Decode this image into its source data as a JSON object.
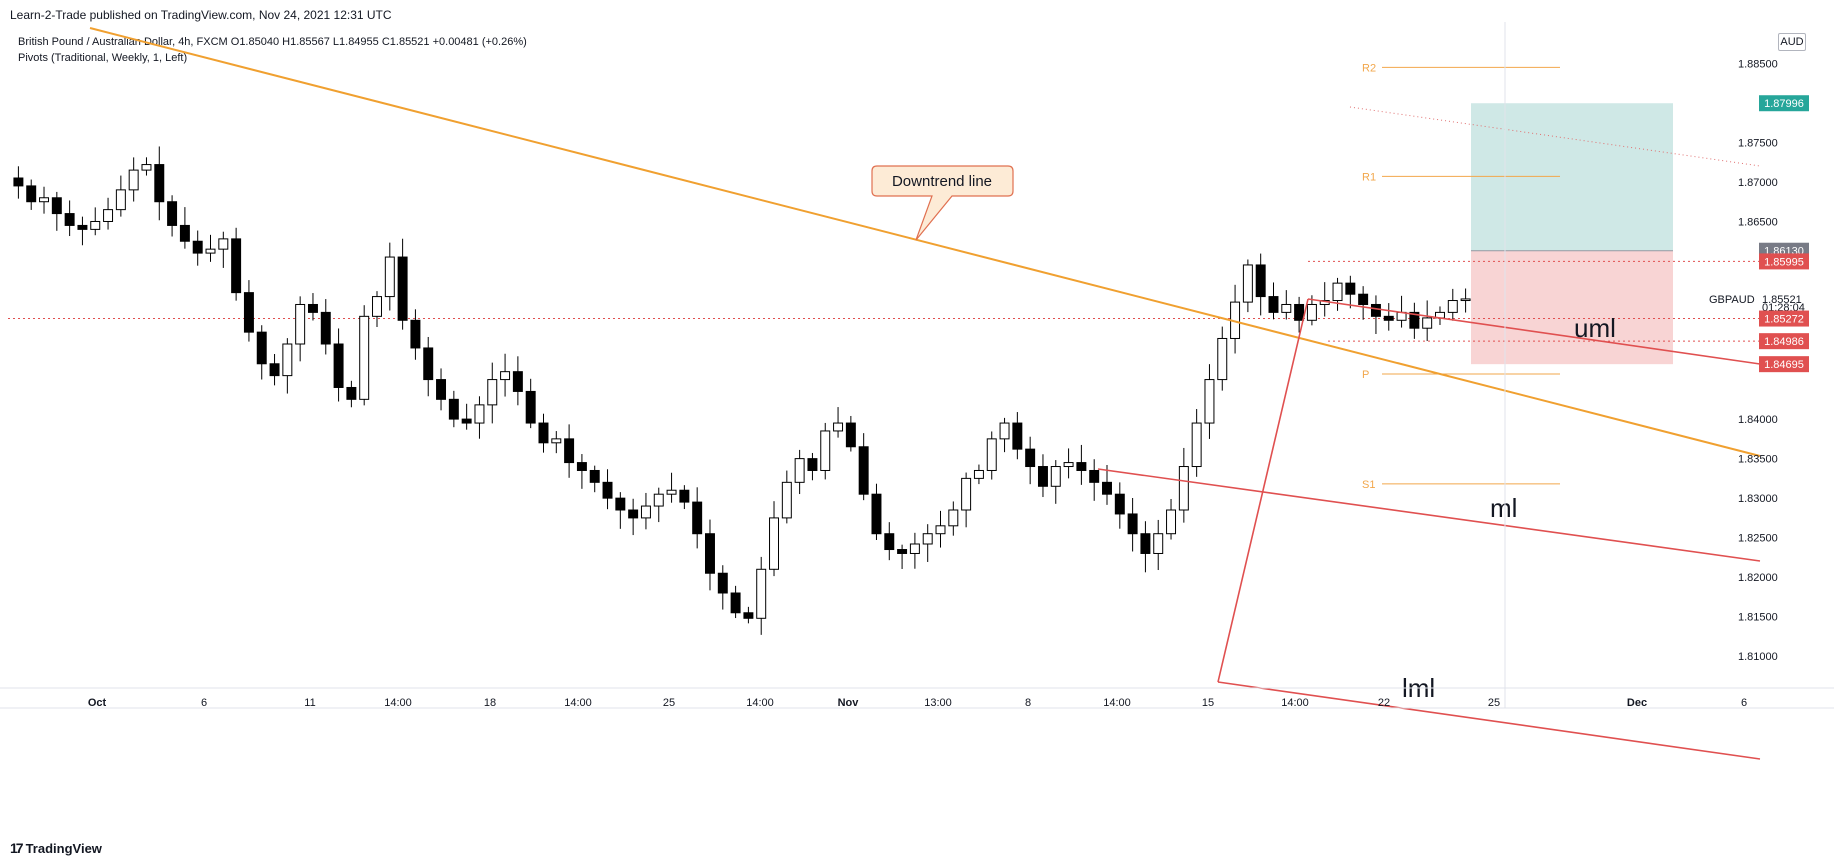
{
  "header": {
    "published": "Learn-2-Trade published on TradingView.com, Nov 24, 2021 12:31 UTC"
  },
  "legend": {
    "line1": "British Pound / Australian Dollar, 4h, FXCM  O1.85040  H1.85567  L1.84955  C1.85521  +0.00481 (+0.26%)",
    "line2": "Pivots (Traditional, Weekly, 1, Left)"
  },
  "currency": "AUD",
  "footer": {
    "brand": "TradingView",
    "brand_mark": "17"
  },
  "colors": {
    "up": "#ffffff",
    "down": "#000000",
    "wick": "#000000",
    "trendline": "#f0a030",
    "fork": "#e05050",
    "pivot": "#f2a74b",
    "target_zone": "#cfe8e6",
    "stop_zone": "#f8d4d4",
    "current_line": "#e05050"
  },
  "chart_data": {
    "type": "candlestick",
    "symbol": "GBPAUD",
    "interval": "4h",
    "title": "British Pound / Australian Dollar, 4h, FXCM",
    "ylim": [
      1.8075,
      1.8872
    ],
    "yticks": [
      1.885,
      1.875,
      1.87,
      1.865,
      1.84,
      1.835,
      1.83,
      1.825,
      1.82,
      1.815,
      1.81
    ],
    "ytick_labels": [
      "1.88500",
      "1.87500",
      "1.87000",
      "1.86500",
      "1.84000",
      "1.83500",
      "1.83000",
      "1.82500",
      "1.82000",
      "1.81500",
      "1.81000"
    ],
    "xticks": [
      "Oct",
      "6",
      "11",
      "14:00",
      "18",
      "14:00",
      "25",
      "14:00",
      "Nov",
      "13:00",
      "8",
      "14:00",
      "15",
      "14:00",
      "22",
      "25",
      "Dec",
      "6"
    ],
    "x_bold": [
      "Oct",
      "Nov",
      "Dec"
    ],
    "close_path": [
      1.8695,
      1.8675,
      1.868,
      1.866,
      1.8645,
      1.864,
      1.865,
      1.8665,
      1.869,
      1.8715,
      1.8722,
      1.8675,
      1.8645,
      1.8625,
      1.861,
      1.8615,
      1.8628,
      1.856,
      1.851,
      1.847,
      1.8455,
      1.8495,
      1.8545,
      1.8535,
      1.8495,
      1.844,
      1.8425,
      1.853,
      1.8555,
      1.8605,
      1.8525,
      1.849,
      1.845,
      1.8425,
      1.84,
      1.8395,
      1.8418,
      1.845,
      1.846,
      1.8435,
      1.8395,
      1.837,
      1.8375,
      1.8345,
      1.8335,
      1.832,
      1.83,
      1.8285,
      1.8275,
      1.829,
      1.8305,
      1.831,
      1.8295,
      1.8255,
      1.8205,
      1.818,
      1.8155,
      1.8148,
      1.821,
      1.8275,
      1.832,
      1.835,
      1.8335,
      1.8385,
      1.8395,
      1.8365,
      1.8305,
      1.8255,
      1.8235,
      1.823,
      1.8242,
      1.8255,
      1.8265,
      1.8285,
      1.8325,
      1.8335,
      1.8375,
      1.8395,
      1.8362,
      1.834,
      1.8315,
      1.834,
      1.8345,
      1.8335,
      1.832,
      1.8305,
      1.828,
      1.8255,
      1.823,
      1.8255,
      1.8285,
      1.834,
      1.8395,
      1.845,
      1.8502,
      1.8548,
      1.8595,
      1.8555,
      1.8535,
      1.8545,
      1.8525,
      1.8545,
      1.855,
      1.8572,
      1.8558,
      1.8545,
      1.853,
      1.8525,
      1.8535,
      1.8515,
      1.8528,
      1.8535,
      1.855,
      1.8552
    ],
    "price_labels": [
      {
        "label": "1.87996",
        "price": 1.87996,
        "color": "#26a69a"
      },
      {
        "label": "1.86130",
        "price": 1.8613,
        "color": "#787b86"
      },
      {
        "label": "1.85995",
        "price": 1.85995,
        "color": "#e05050"
      },
      {
        "label": "GBPAUD",
        "price": 1.85521,
        "color": "none"
      },
      {
        "label": "1.85521",
        "price": 1.85521,
        "color": "none"
      },
      {
        "label": "01:28:04",
        "price": 1.85421,
        "color": "none"
      },
      {
        "label": "1.85272",
        "price": 1.85272,
        "color": "#e05050"
      },
      {
        "label": "1.84986",
        "price": 1.84986,
        "color": "#e05050"
      },
      {
        "label": "1.84695",
        "price": 1.84695,
        "color": "#e05050"
      }
    ],
    "pivots": [
      {
        "label": "R2",
        "price": 1.8845
      },
      {
        "label": "R1",
        "price": 1.8707
      },
      {
        "label": "P",
        "price": 1.8457
      },
      {
        "label": "S1",
        "price": 1.8318
      }
    ],
    "position": {
      "entry": 1.8613,
      "target": 1.87996,
      "stop": 1.84695
    },
    "levels": [
      1.85272,
      1.84986,
      1.85995
    ],
    "annotations": {
      "downtrend": "Downtrend line",
      "uml": "uml",
      "ml": "ml",
      "lml": "lml"
    }
  }
}
